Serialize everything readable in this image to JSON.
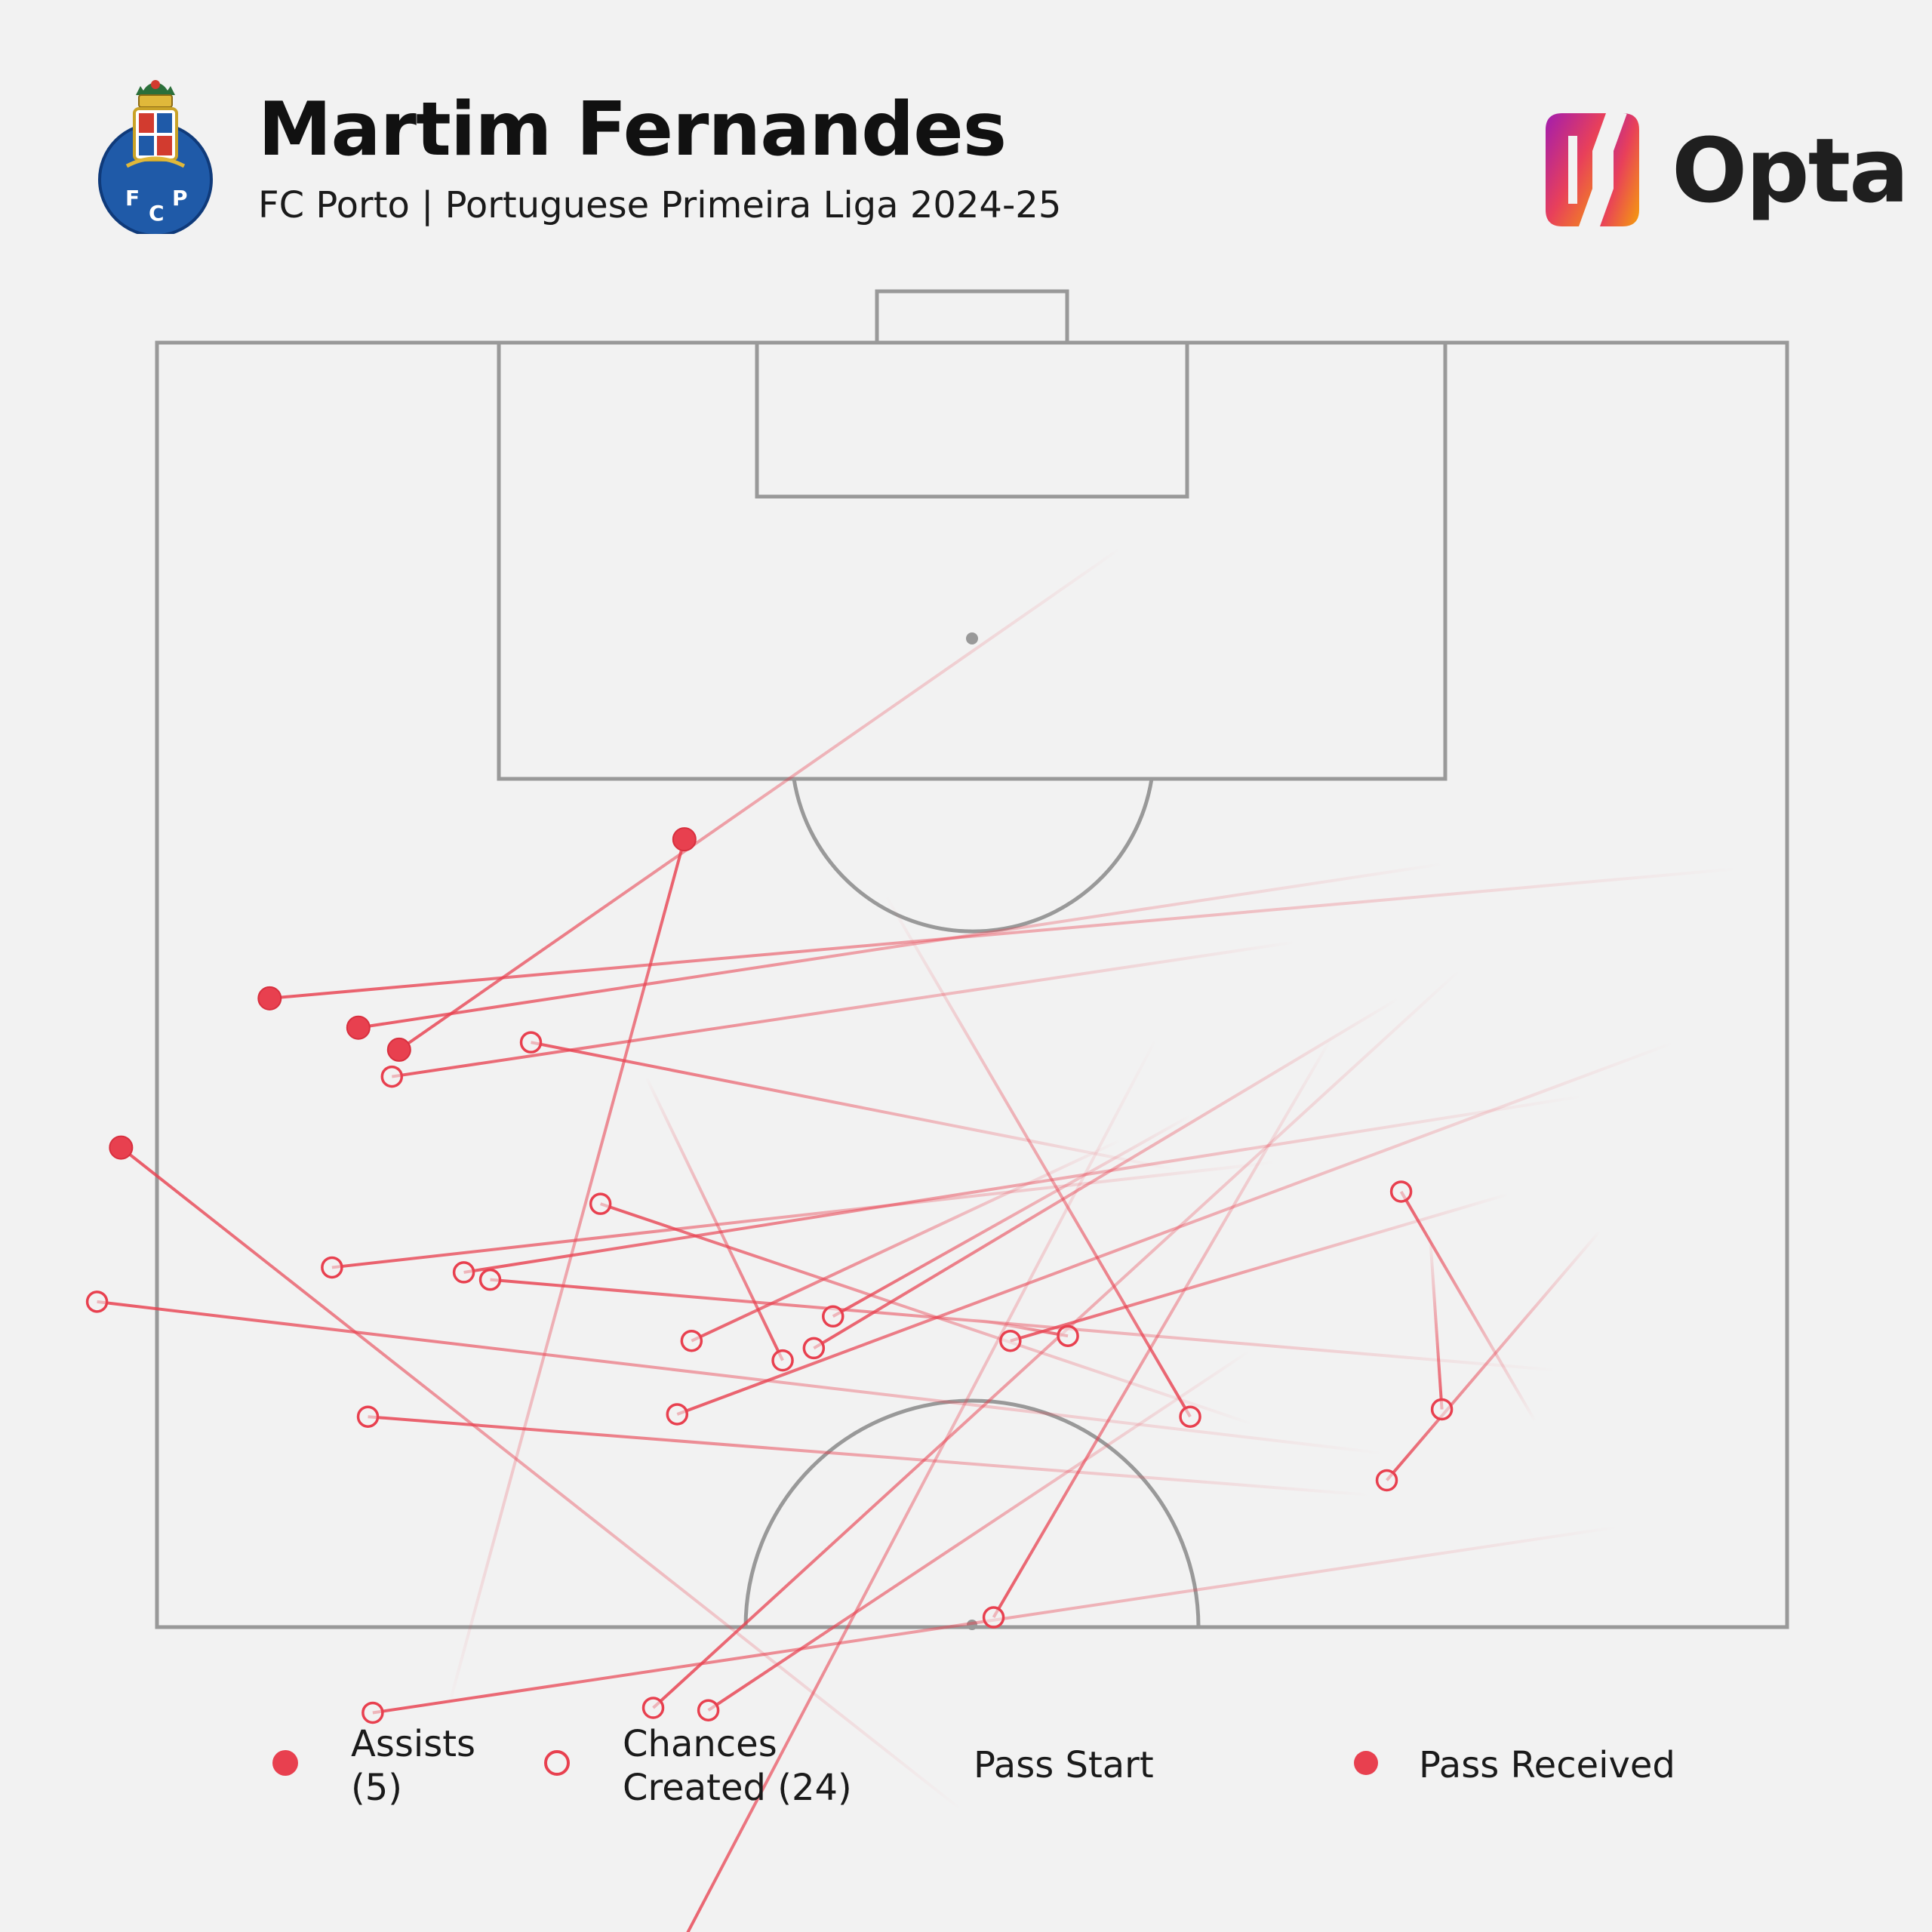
{
  "header": {
    "player_name": "Martim Fernandes",
    "subtitle": "FC Porto | Portuguese Primeira Liga 2024-25",
    "club_badge_icon": "fc-porto-crest-icon",
    "club_badge_text": [
      "F",
      "C",
      "P"
    ],
    "provider_logo_icon": "opta-logo-icon",
    "provider_name": "Opta"
  },
  "colors": {
    "background": "#f2f2f2",
    "pitch_lines": "#999999",
    "pass": "#e8404f",
    "title": "#111111"
  },
  "legend": {
    "assists_line1": "Assists",
    "assists_line2": "(5)",
    "chances_line1": "Chances",
    "chances_line2": "Created (24)",
    "pass_start": "Pass Start",
    "pass_received": "Pass Received"
  },
  "chart_data": {
    "type": "scatter",
    "pitch": "attacking half, vertical, goal at top",
    "counts": {
      "assists": 5,
      "chances_created": 24
    },
    "series": [
      {
        "name": "Assists (5)",
        "marker": "filled",
        "passes": [
          {
            "start": [
              2.0,
              21.5
            ],
            "end": [
              63.3,
              26.8
            ]
          },
          {
            "start": [
              14.3,
              21.3
            ],
            "end": [
              59.6,
              28.0
            ]
          },
          {
            "start": [
              27.8,
              8.4
            ],
            "end": [
              57.9,
              28.9
            ]
          },
          {
            "start": [
              34.4,
              60.0
            ],
            "end": [
              69.5,
              32.9
            ]
          },
          {
            "start": [
              55.9,
              56.0
            ],
            "end": [
              46.0,
              20.3
            ]
          }
        ]
      },
      {
        "name": "Chances Created (24)",
        "marker": "hollow",
        "passes": [
          {
            "start": [
              20.5,
              24.5
            ],
            "end": [
              58.2,
              30.0
            ]
          },
          {
            "start": [
              25.5,
              33.8
            ],
            "end": [
              52.4,
              28.6
            ]
          },
          {
            "start": [
              16.8,
              45.4
            ],
            "end": [
              70.5,
              39.2
            ]
          },
          {
            "start": [
              22.3,
              44.2
            ],
            "end": [
              49.5,
              35.2
            ]
          },
          {
            "start": [
              21.3,
              33.5
            ],
            "end": [
              60.7,
              37.8
            ]
          },
          {
            "start": [
              8.5,
              30.8
            ],
            "end": [
              55.2,
              38.0
            ]
          },
          {
            "start": [
              9.6,
              42.0
            ],
            "end": [
              54.1,
              38.3
            ]
          },
          {
            "start": [
              27.8,
              32.6
            ],
            "end": [
              45.7,
              40.8
            ]
          },
          {
            "start": [
              34.0,
              39.9
            ],
            "end": [
              30.0,
              40.6
            ]
          },
          {
            "start": [
              47.6,
              30.0
            ],
            "end": [
              41.9,
              41.6
            ]
          },
          {
            "start": [
              11.6,
              34.8
            ],
            "end": [
              32.4,
              40.8
            ]
          },
          {
            "start": [
              24.9,
              31.6
            ],
            "end": [
              39.8,
              39.8
            ]
          },
          {
            "start": [
              16.2,
              26.8
            ],
            "end": [
              40.6,
              41.1
            ]
          },
          {
            "start": [
              37.6,
              22.6
            ],
            "end": [
              24.9,
              43.9
            ]
          },
          {
            "start": [
              14.9,
              36.4
            ],
            "end": [
              14.4,
              43.6
            ]
          },
          {
            "start": [
              17.4,
              47.1
            ],
            "end": [
              59.2,
              43.9
            ]
          },
          {
            "start": [
              7.8,
              36.3
            ],
            "end": [
              16.7,
              46.5
            ]
          },
          {
            "start": [
              19.0,
              28.4
            ],
            "end": [
              33.1,
              52.1
            ]
          },
          {
            "start": [
              7.0,
              48.4
            ],
            "end": [
              59.0,
              56.0
            ]
          },
          {
            "start": [
              13.6,
              25.6
            ],
            "end": [
              47.3,
              55.8
            ]
          },
          {
            "start": [
              22.4,
              41.2
            ],
            "end": [
              45.0,
              55.9
            ]
          },
          {
            "start": [
              26.3,
              28.4
            ],
            "end": [
              47.1,
              67.3
            ]
          },
          {
            "start": [
              10.5,
              44.1
            ],
            "end": [
              16.1,
              34.7
            ]
          },
          {
            "start": [
              4.7,
              28.6
            ],
            "end": [
              46.3,
              43.8
            ]
          }
        ]
      }
    ]
  }
}
